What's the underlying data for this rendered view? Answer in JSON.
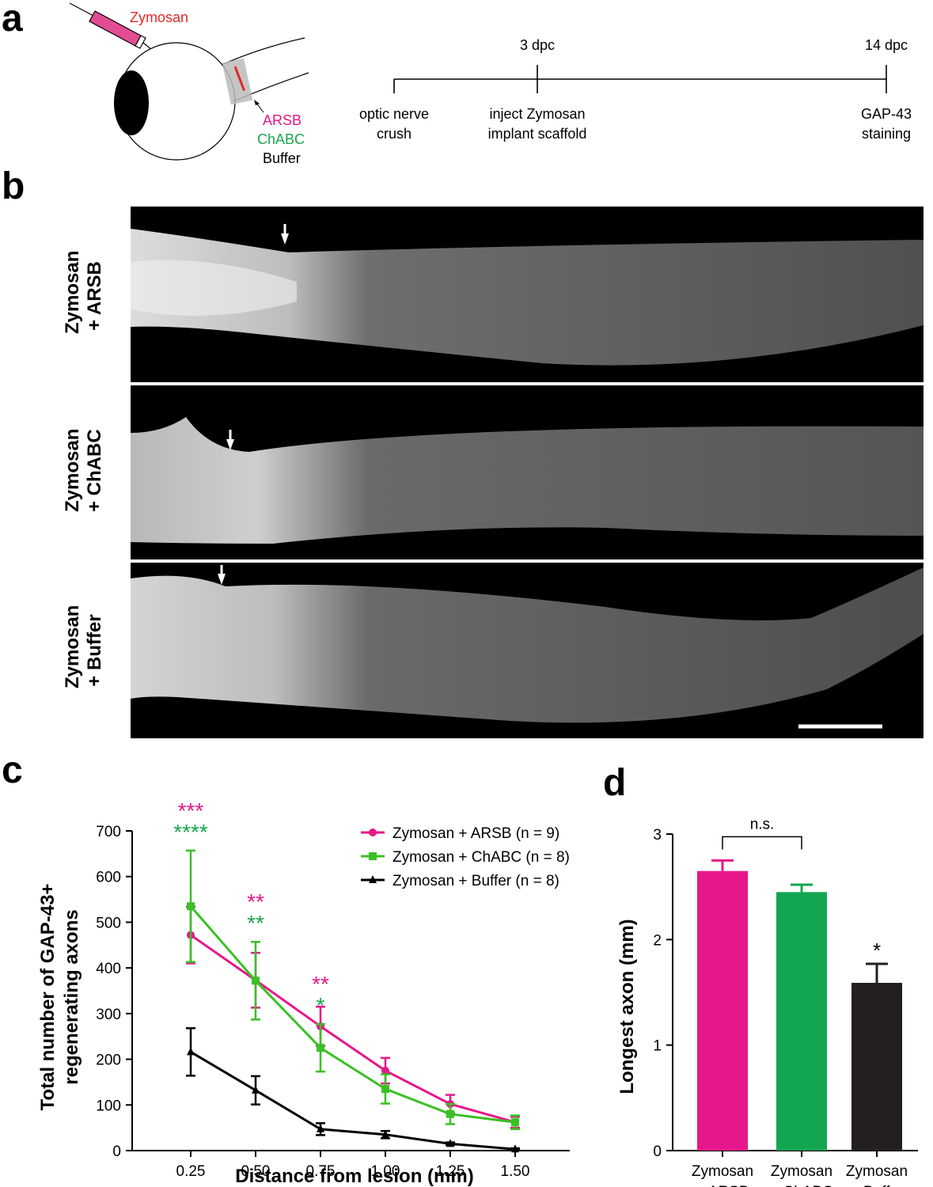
{
  "panels": {
    "a": "a",
    "b": "b",
    "c": "c",
    "d": "d"
  },
  "panel_a": {
    "schematic": {
      "injection_label": "Zymosan",
      "treatments": [
        {
          "label": "ARSB",
          "color": "#e6178a"
        },
        {
          "label": "ChABC",
          "color": "#1aa650"
        },
        {
          "label": "Buffer",
          "color": "#000000"
        }
      ]
    },
    "timeline": {
      "ticks": [
        {
          "top": "",
          "bottom": [
            "optic nerve",
            "crush"
          ]
        },
        {
          "top": "3 dpc",
          "bottom": [
            "inject Zymosan",
            "implant scaffold"
          ]
        },
        {
          "top": "14 dpc",
          "bottom": [
            "GAP-43",
            "staining"
          ]
        }
      ]
    }
  },
  "panel_b": {
    "rows": [
      {
        "label": [
          "Zymosan",
          "+ ARSB"
        ]
      },
      {
        "label": [
          "Zymosan",
          "+ ChABC"
        ]
      },
      {
        "label": [
          "Zymosan",
          "+ Buffer"
        ]
      }
    ]
  },
  "chart_data": [
    {
      "type": "line",
      "xlabel": "Distance from lesion (mm)",
      "ylabel": [
        "Total number of GAP-43+",
        "regenerating axons"
      ],
      "x": [
        "0.25",
        "0.50",
        "0.75",
        "1.00",
        "1.25",
        "1.50"
      ],
      "ylim": [
        0,
        700
      ],
      "yticks": [
        "0",
        "100",
        "200",
        "300",
        "400",
        "500",
        "600",
        "700"
      ],
      "legend_position": "top-right",
      "series": [
        {
          "name": "Zymosan + ARSB (n = 9)",
          "color": "#e6178a",
          "marker": "circle",
          "values": [
            472,
            373,
            272,
            175,
            102,
            62
          ],
          "errors": [
            62,
            60,
            43,
            28,
            20,
            12
          ]
        },
        {
          "name": "Zymosan + ChABC (n = 8)",
          "color": "#39c124",
          "marker": "square",
          "values": [
            535,
            372,
            225,
            135,
            80,
            62
          ],
          "errors": [
            122,
            85,
            52,
            32,
            22,
            15
          ]
        },
        {
          "name": "Zymosan + Buffer (n = 8)",
          "color": "#000000",
          "marker": "triangle",
          "values": [
            216,
            132,
            47,
            35,
            15,
            3
          ],
          "errors": [
            52,
            31,
            13,
            8,
            3,
            2
          ]
        }
      ],
      "annotations": [
        {
          "x": "0.25",
          "lines": [
            {
              "text": "***",
              "color": "#e6178a"
            },
            {
              "text": "****",
              "color": "#1aa650"
            }
          ]
        },
        {
          "x": "0.50",
          "lines": [
            {
              "text": "**",
              "color": "#e6178a"
            },
            {
              "text": "**",
              "color": "#1aa650"
            }
          ]
        },
        {
          "x": "0.75",
          "lines": [
            {
              "text": "**",
              "color": "#e6178a"
            },
            {
              "text": "*",
              "color": "#1aa650"
            }
          ]
        }
      ]
    },
    {
      "type": "bar",
      "ylabel": "Longest axon (mm)",
      "ylim": [
        0,
        3
      ],
      "yticks": [
        "0",
        "1",
        "2",
        "3"
      ],
      "categories": [
        [
          "Zymosan",
          "+ ARSB"
        ],
        [
          "Zymosan",
          "+ ChABC"
        ],
        [
          "Zymosan",
          "+ Buffer"
        ]
      ],
      "values": [
        2.65,
        2.45,
        1.59
      ],
      "errors": [
        0.1,
        0.07,
        0.18
      ],
      "colors": [
        "#e6178a",
        "#12a650",
        "#231f20"
      ],
      "annotations": [
        {
          "type": "bracket",
          "between": [
            0,
            1
          ],
          "text": "n.s."
        },
        {
          "type": "star",
          "over": 2,
          "text": "*"
        }
      ]
    }
  ]
}
